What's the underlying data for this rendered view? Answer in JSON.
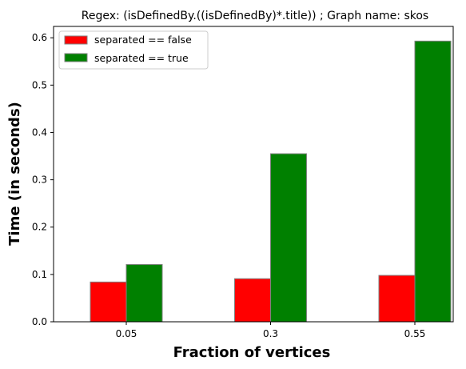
{
  "chart_data": {
    "type": "bar",
    "title": "Regex: (isDefinedBy.((isDefinedBy)*.title)) ; Graph name: skos",
    "xlabel": "Fraction of vertices",
    "ylabel": "Time (in seconds)",
    "categories": [
      "0.05",
      "0.3",
      "0.55"
    ],
    "series": [
      {
        "name": "separated == false",
        "color": "#ff0000",
        "values": [
          0.084,
          0.091,
          0.098
        ]
      },
      {
        "name": "separated == true",
        "color": "#008000",
        "values": [
          0.121,
          0.355,
          0.593
        ]
      }
    ],
    "ylim": [
      0,
      0.624
    ],
    "yticks": [
      0.0,
      0.1,
      0.2,
      0.3,
      0.4,
      0.5,
      0.6
    ],
    "ytick_labels": [
      "0.0",
      "0.1",
      "0.2",
      "0.3",
      "0.4",
      "0.5",
      "0.6"
    ],
    "grid": false,
    "legend_position": "top-left",
    "bar_edge_color": "#808080"
  }
}
